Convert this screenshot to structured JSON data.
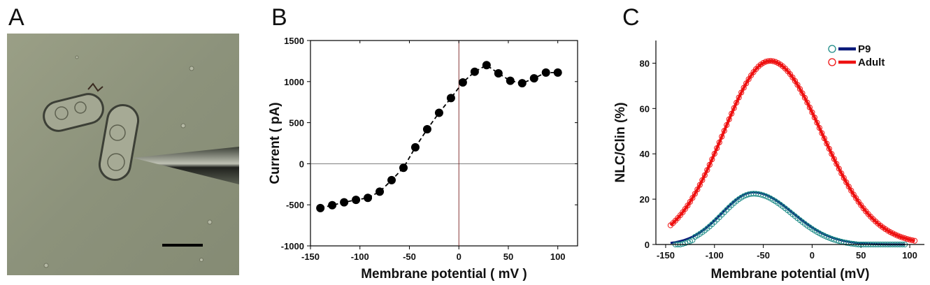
{
  "panels": {
    "a": {
      "letter": "A"
    },
    "b": {
      "letter": "B"
    },
    "c": {
      "letter": "C"
    }
  },
  "colors": {
    "black": "#000000",
    "zero_line_v": "#7a1f1f",
    "p9_line": "#0a1a7a",
    "p9_circle": "#1b8a86",
    "adult": "#ee1111"
  },
  "chart_data": [
    {
      "id": "B",
      "type": "line",
      "xlabel": "Membrane potential ( mV )",
      "ylabel": "Current ( pA)",
      "xlim": [
        -150,
        120
      ],
      "ylim": [
        -1000,
        1500
      ],
      "xticks": [
        -150,
        -100,
        -50,
        0,
        50,
        100
      ],
      "yticks": [
        -1000,
        -500,
        0,
        500,
        1000,
        1500
      ],
      "grid": false,
      "series": [
        {
          "x": [
            -140,
            -128,
            -116,
            -104,
            -92,
            -80,
            -68,
            -56,
            -44,
            -32,
            -20,
            -8,
            4,
            16,
            28,
            40,
            52,
            64,
            76,
            88,
            100
          ],
          "y": [
            -540,
            -505,
            -470,
            -440,
            -415,
            -340,
            -200,
            -50,
            200,
            420,
            620,
            800,
            990,
            1120,
            1200,
            1100,
            1010,
            980,
            1040,
            1110,
            1110
          ]
        }
      ]
    },
    {
      "id": "C",
      "type": "line",
      "xlabel": "Membrane potential (mV)",
      "ylabel": "NLC/Clin (%)",
      "xlim": [
        -160,
        115
      ],
      "ylim": [
        0,
        90
      ],
      "xticks": [
        -150,
        -100,
        -50,
        0,
        50,
        100
      ],
      "yticks": [
        0,
        20,
        40,
        60,
        80
      ],
      "legend_position": "top-right",
      "series": [
        {
          "name": "P9",
          "peak_x": -60,
          "peak_y": 23,
          "x_range": [
            -140,
            95
          ],
          "fit_x_range": [
            -145,
            95
          ]
        },
        {
          "name": "Adult",
          "peak_x": -43,
          "peak_y": 81,
          "x_range": [
            -145,
            105
          ],
          "fit_x_range": [
            -145,
            105
          ]
        }
      ]
    }
  ]
}
